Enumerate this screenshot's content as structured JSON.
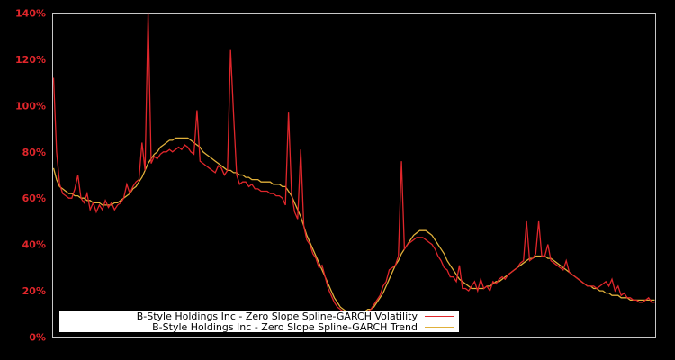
{
  "chart_data": {
    "type": "line",
    "title": "",
    "xlabel": "",
    "ylabel": "",
    "ylim": [
      0,
      140
    ],
    "y_ticks": [
      "0%",
      "20%",
      "40%",
      "60%",
      "80%",
      "100%",
      "120%",
      "140%"
    ],
    "y_tick_values": [
      0,
      20,
      40,
      60,
      80,
      100,
      120,
      140
    ],
    "grid": false,
    "legend_position": "lower left",
    "background": "#000000",
    "axes_color": "#c8c8c8",
    "series": [
      {
        "name": "B-Style Holdings Inc - Zero Slope Spline-GARCH Volatility",
        "color": "#e0262b",
        "values": [
          112,
          80,
          66,
          62,
          61,
          60,
          60,
          64,
          70,
          60,
          58,
          62,
          55,
          58,
          54,
          57,
          55,
          59,
          56,
          58,
          55,
          57,
          58,
          60,
          66,
          62,
          65,
          67,
          68,
          84,
          72,
          140,
          75,
          78,
          77,
          79,
          80,
          80,
          81,
          80,
          81,
          82,
          81,
          83,
          82,
          80,
          79,
          98,
          76,
          75,
          74,
          73,
          72,
          71,
          74,
          73,
          70,
          72,
          124,
          96,
          70,
          66,
          67,
          67,
          65,
          66,
          64,
          64,
          63,
          63,
          63,
          62,
          62,
          61,
          61,
          60,
          57,
          97,
          62,
          54,
          51,
          81,
          48,
          42,
          40,
          36,
          34,
          30,
          31,
          26,
          21,
          18,
          15,
          13,
          12,
          11,
          10,
          10,
          10,
          11,
          10,
          10,
          11,
          11,
          12,
          14,
          16,
          18,
          22,
          24,
          29,
          30,
          31,
          35,
          76,
          38,
          40,
          41,
          42,
          43,
          43,
          43,
          42,
          41,
          40,
          38,
          35,
          33,
          30,
          29,
          26,
          26,
          24,
          31,
          21,
          21,
          20,
          22,
          24,
          20,
          25,
          21,
          22,
          20,
          24,
          23,
          25,
          26,
          25,
          27,
          28,
          29,
          30,
          32,
          33,
          50,
          33,
          34,
          36,
          50,
          35,
          35,
          40,
          33,
          32,
          31,
          30,
          29,
          33,
          28,
          27,
          26,
          25,
          24,
          23,
          22,
          22,
          22,
          21,
          22,
          23,
          24,
          22,
          25,
          20,
          22,
          18,
          19,
          17,
          17,
          16,
          16,
          15,
          15,
          16,
          17,
          15,
          15
        ]
      },
      {
        "name": "B-Style Holdings Inc - Zero Slope Spline-GARCH Trend",
        "color": "#e0b03a",
        "values": [
          73,
          68,
          65,
          64,
          63,
          62,
          62,
          61,
          61,
          60,
          60,
          59,
          59,
          58,
          58,
          58,
          57,
          57,
          57,
          57,
          58,
          58,
          59,
          60,
          61,
          62,
          64,
          65,
          67,
          69,
          72,
          75,
          77,
          79,
          80,
          82,
          83,
          84,
          85,
          85,
          86,
          86,
          86,
          86,
          86,
          85,
          84,
          83,
          82,
          80,
          79,
          78,
          77,
          76,
          75,
          74,
          73,
          72,
          72,
          71,
          71,
          70,
          70,
          69,
          69,
          68,
          68,
          68,
          67,
          67,
          67,
          67,
          66,
          66,
          66,
          65,
          65,
          63,
          61,
          58,
          55,
          52,
          48,
          44,
          41,
          38,
          35,
          32,
          29,
          26,
          23,
          20,
          17,
          15,
          13,
          12,
          11,
          11,
          11,
          11,
          11,
          11,
          11,
          12,
          12,
          13,
          15,
          17,
          19,
          22,
          25,
          28,
          31,
          33,
          36,
          38,
          40,
          42,
          44,
          45,
          46,
          46,
          46,
          45,
          44,
          42,
          40,
          38,
          36,
          33,
          31,
          29,
          27,
          25,
          24,
          23,
          22,
          21,
          21,
          21,
          21,
          21,
          22,
          22,
          23,
          24,
          24,
          25,
          26,
          27,
          28,
          29,
          30,
          31,
          32,
          33,
          34,
          34,
          35,
          35,
          35,
          35,
          34,
          34,
          33,
          32,
          31,
          30,
          29,
          28,
          27,
          26,
          25,
          24,
          23,
          22,
          22,
          21,
          21,
          20,
          20,
          19,
          19,
          18,
          18,
          18,
          17,
          17,
          17,
          16,
          16,
          16,
          16,
          16,
          16,
          16,
          16,
          16
        ]
      }
    ]
  },
  "legend": {
    "items": [
      {
        "label": "B-Style Holdings Inc - Zero Slope Spline-GARCH Volatility",
        "color": "#e0262b"
      },
      {
        "label": "B-Style Holdings Inc - Zero Slope Spline-GARCH Trend",
        "color": "#e0b03a"
      }
    ]
  }
}
